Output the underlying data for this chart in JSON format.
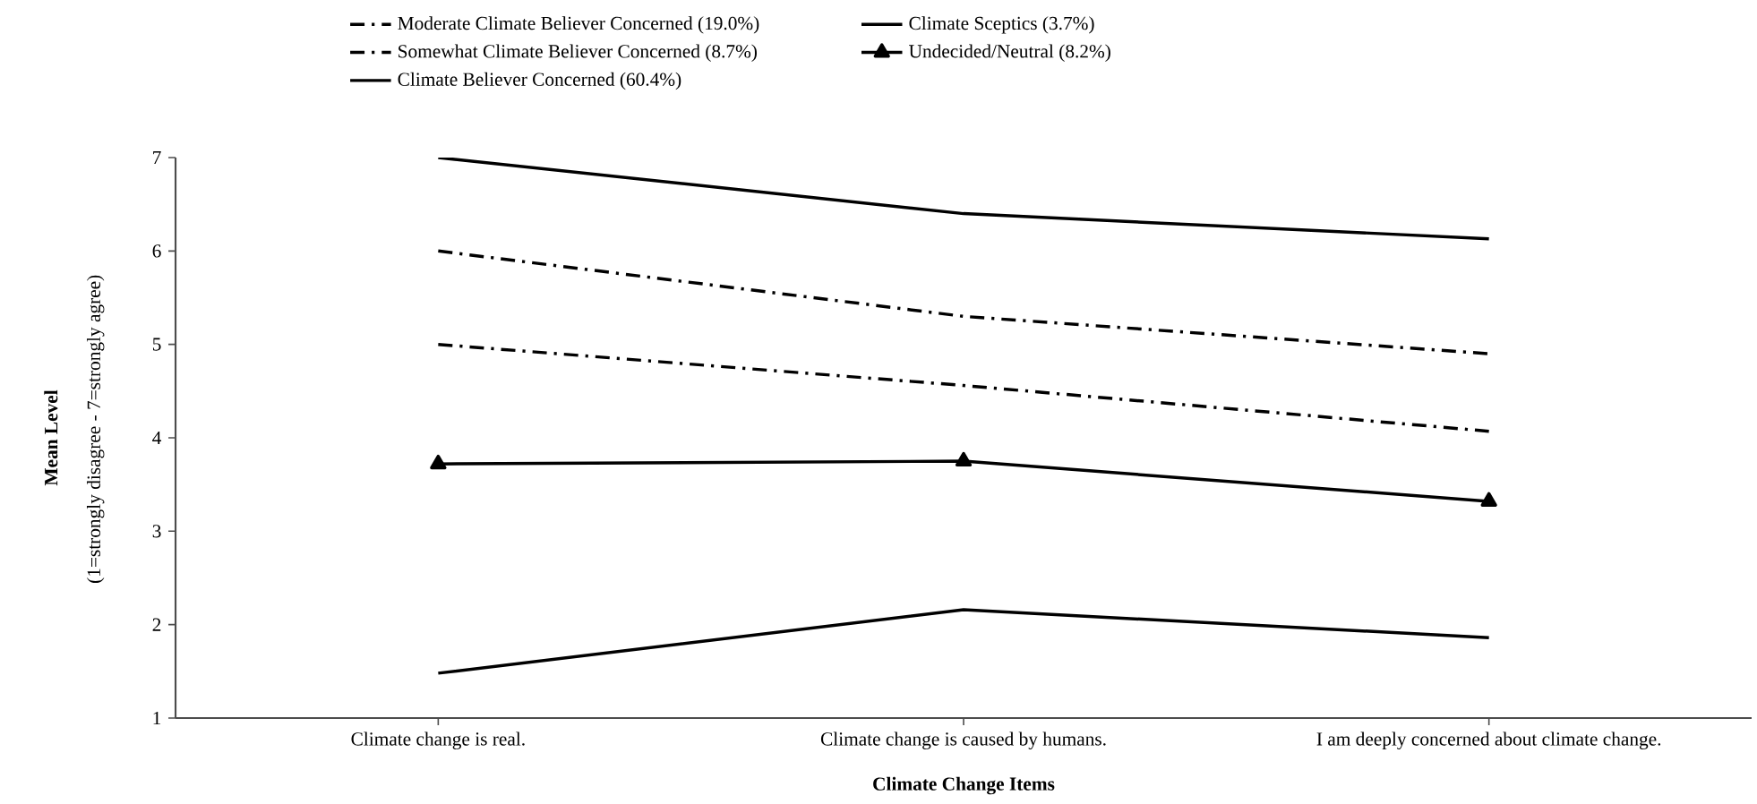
{
  "chart_data": {
    "type": "line",
    "xlabel": "Climate Change Items",
    "ylabel": "Mean Level",
    "annotations": [
      "(1=strongly disagree - 7=strongly agree)"
    ],
    "categories": [
      "Climate change is real.",
      "Climate change is caused by humans.",
      "I am deeply concerned about climate change."
    ],
    "ylim": [
      1,
      7
    ],
    "yticks": [
      1,
      2,
      3,
      4,
      5,
      6,
      7
    ],
    "legend": "top",
    "grid": false,
    "series": [
      {
        "name": "Moderate Climate Believer Concerned (19.0%)",
        "color": "#000000",
        "line_style": "dashdot",
        "marker": "none",
        "values": [
          6.0,
          5.3,
          4.9
        ]
      },
      {
        "name": "Climate Sceptics (3.7%)",
        "color": "#000000",
        "line_style": "solid",
        "marker": "none",
        "values": [
          1.48,
          2.16,
          1.86
        ]
      },
      {
        "name": "Somewhat Climate Believer Concerned (8.7%)",
        "color": "#000000",
        "line_style": "dashdot",
        "marker": "none",
        "values": [
          5.0,
          4.56,
          4.07
        ]
      },
      {
        "name": "Undecided/Neutral (8.2%)",
        "color": "#000000",
        "line_style": "solid",
        "marker": "triangle",
        "values": [
          3.72,
          3.75,
          3.32
        ]
      },
      {
        "name": "Climate Believer Concerned (60.4%)",
        "color": "#000000",
        "line_style": "solid",
        "marker": "none",
        "values": [
          7.0,
          6.4,
          6.13
        ]
      }
    ]
  }
}
